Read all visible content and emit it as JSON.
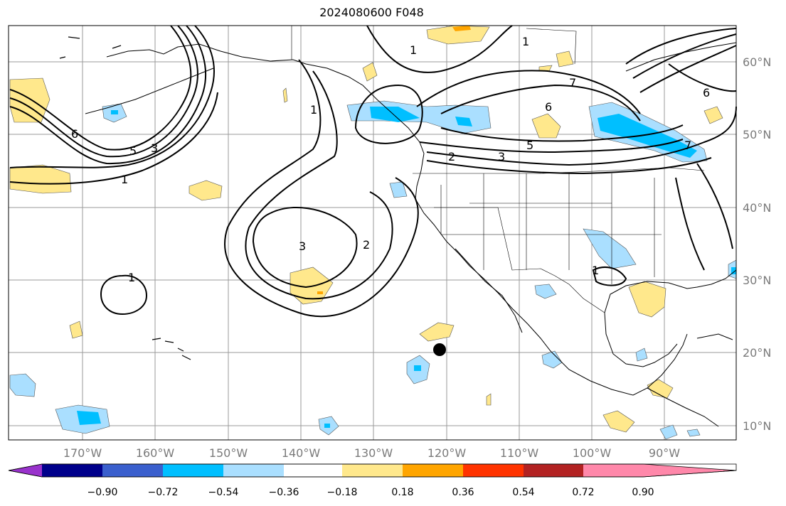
{
  "title": "2024080600 F048",
  "map": {
    "lon_labels": [
      "170°W",
      "160°W",
      "150°W",
      "140°W",
      "130°W",
      "120°W",
      "110°W",
      "100°W",
      "90°W"
    ],
    "lat_labels": [
      "60°N",
      "50°N",
      "40°N",
      "30°N",
      "20°N",
      "10°N"
    ],
    "contour_labels": [
      "1",
      "2",
      "3",
      "5",
      "6",
      "7"
    ]
  },
  "colorbar": {
    "ticks": [
      "−0.90",
      "−0.72",
      "−0.54",
      "−0.36",
      "−0.18",
      "0.18",
      "0.36",
      "0.54",
      "0.72",
      "0.90"
    ],
    "colors": [
      "#9932cc",
      "#00008b",
      "#3a5fcd",
      "#00bfff",
      "#aadfff",
      "#ffffff",
      "#ffe88c",
      "#ffa500",
      "#ff3300",
      "#b22222",
      "#ff88aa"
    ]
  },
  "marker": {
    "lon": "120.7°W",
    "lat": "20.2°N"
  }
}
